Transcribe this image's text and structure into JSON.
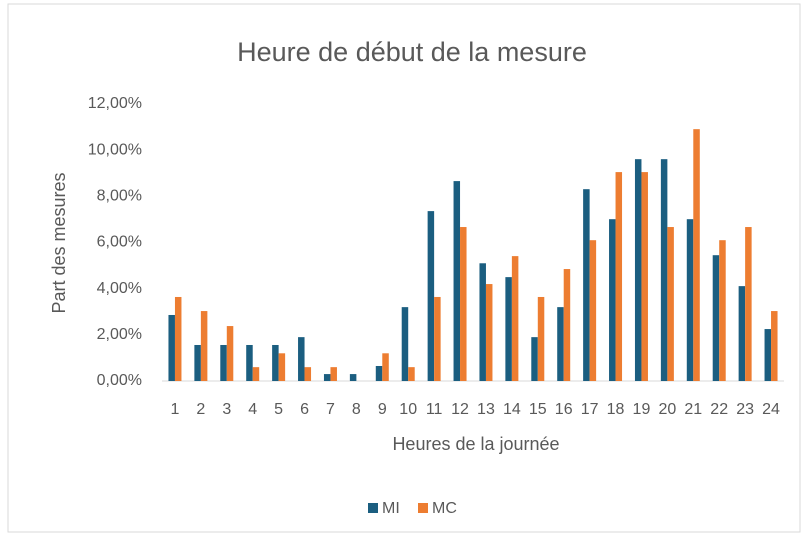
{
  "chart_data": {
    "type": "bar",
    "title": "Heure de début de la mesure",
    "x_label": "Heures de la journée",
    "y_label": "Part des mesures",
    "categories": [
      "1",
      "2",
      "3",
      "4",
      "5",
      "6",
      "7",
      "8",
      "9",
      "10",
      "11",
      "12",
      "13",
      "14",
      "15",
      "16",
      "17",
      "18",
      "19",
      "20",
      "21",
      "22",
      "23",
      "24"
    ],
    "series": [
      {
        "name": "MI",
        "color": "#1b5e80",
        "values": [
          2.86,
          1.56,
          1.56,
          1.56,
          1.56,
          1.9,
          0.3,
          0.3,
          0.65,
          3.2,
          7.36,
          8.66,
          5.1,
          4.5,
          1.9,
          3.2,
          8.31,
          7.01,
          9.61,
          9.61,
          7.01,
          5.45,
          4.11,
          2.25
        ]
      },
      {
        "name": "MC",
        "color": "#ed7d31",
        "values": [
          3.64,
          3.03,
          2.38,
          0.6,
          1.2,
          0.6,
          0.6,
          0,
          1.2,
          0.6,
          3.64,
          6.67,
          4.2,
          5.41,
          3.64,
          4.85,
          6.1,
          9.05,
          9.05,
          6.67,
          10.91,
          6.1,
          6.67,
          3.03
        ]
      }
    ],
    "ylim": [
      0,
      12
    ],
    "yticks": [
      {
        "value": 0,
        "label": "0,00%"
      },
      {
        "value": 2,
        "label": "2,00%"
      },
      {
        "value": 4,
        "label": "4,00%"
      },
      {
        "value": 6,
        "label": "6,00%"
      },
      {
        "value": 8,
        "label": "8,00%"
      },
      {
        "value": 10,
        "label": "10,00%"
      },
      {
        "value": 12,
        "label": "12,00%"
      }
    ],
    "grid": false,
    "legend": "bottom"
  }
}
